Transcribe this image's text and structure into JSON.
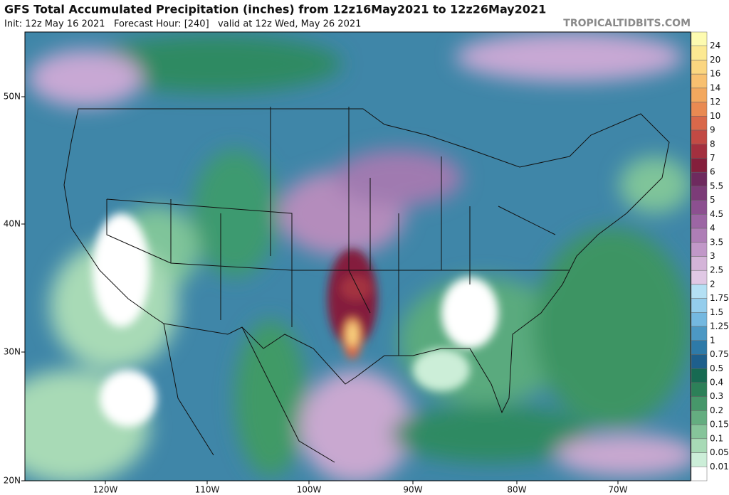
{
  "header": {
    "title": "GFS Total Accumulated Precipitation (inches) from 12z16May2021 to 12z26May2021",
    "subtitle": "Init: 12z May 16 2021   Forecast Hour: [240]   valid at 12z Wed, May 26 2021",
    "credit": "TROPICALTIDBITS.COM"
  },
  "axes": {
    "lat_labels": [
      "50N",
      "40N",
      "30N",
      "20N"
    ],
    "lon_labels": [
      "120W",
      "110W",
      "100W",
      "90W",
      "80W",
      "70W"
    ]
  },
  "colorbar": {
    "labels": [
      "24",
      "20",
      "16",
      "14",
      "12",
      "10",
      "9",
      "8",
      "7",
      "6",
      "5.5",
      "5",
      "4.5",
      "4",
      "3.5",
      "3",
      "2.5",
      "2",
      "1.75",
      "1.5",
      "1.25",
      "1",
      "0.75",
      "0.5",
      "0.4",
      "0.3",
      "0.2",
      "0.15",
      "0.1",
      "0.05",
      "0.01"
    ],
    "colors": [
      "#fdfbb0",
      "#fce992",
      "#fbd680",
      "#f8c070",
      "#f3a85e",
      "#e98a52",
      "#d9684a",
      "#c24a44",
      "#a3303f",
      "#841f3c",
      "#6e2a5e",
      "#7c3c78",
      "#8c5090",
      "#9c66a4",
      "#ae7eb6",
      "#c198c8",
      "#d4b4d8",
      "#e0c8e4",
      "#b4e0f4",
      "#94cdec",
      "#74b8e0",
      "#4c98c4",
      "#2e7aa8",
      "#1e5f8c",
      "#176a52",
      "#2c8058",
      "#46976a",
      "#64ad80",
      "#86c49a",
      "#a8dab6",
      "#cceed8",
      "#ffffff"
    ]
  }
}
